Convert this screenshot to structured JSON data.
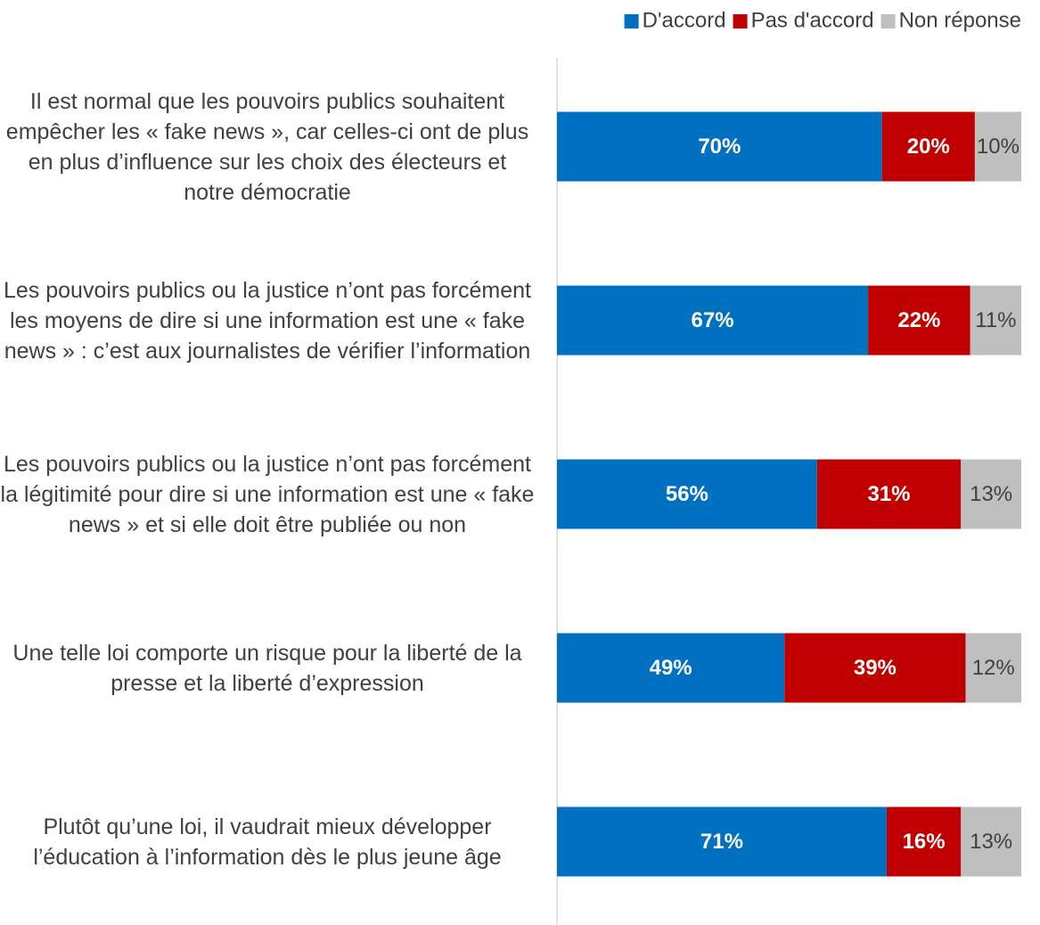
{
  "chart_data": {
    "type": "stacked-bar-horizontal",
    "categories": [
      "Il est normal que les pouvoirs publics souhaitent empêcher les « fake news », car celles-ci ont de plus en plus d’influence sur les choix des électeurs et notre démocratie",
      "Les pouvoirs publics ou la justice n’ont pas forcément les moyens de dire si une information est une « fake news » : c’est aux journalistes de vérifier l’information",
      "Les pouvoirs publics ou la justice n’ont pas forcément la légitimité pour dire si une information est une « fake news » et si elle doit être publiée ou non",
      "Une telle loi comporte un risque pour la liberté de la presse et la liberté d’expression",
      "Plutôt qu’une loi, il vaudrait mieux développer l’éducation à l’information dès le plus jeune âge"
    ],
    "series": [
      {
        "name": "D'accord",
        "color": "#0070c0",
        "values": [
          70,
          67,
          56,
          49,
          71
        ],
        "value_labels": [
          "70%",
          "67%",
          "56%",
          "49%",
          "71%"
        ]
      },
      {
        "name": "Pas d'accord",
        "color": "#c00000",
        "values": [
          20,
          22,
          31,
          39,
          16
        ],
        "value_labels": [
          "20%",
          "22%",
          "31%",
          "39%",
          "16%"
        ]
      },
      {
        "name": "Non réponse",
        "color": "#bfbfbf",
        "values": [
          10,
          11,
          13,
          12,
          13
        ],
        "value_labels": [
          "10%",
          "11%",
          "13%",
          "12%",
          "13%"
        ]
      }
    ],
    "xlim": [
      0,
      100
    ],
    "legend": "top-right"
  }
}
